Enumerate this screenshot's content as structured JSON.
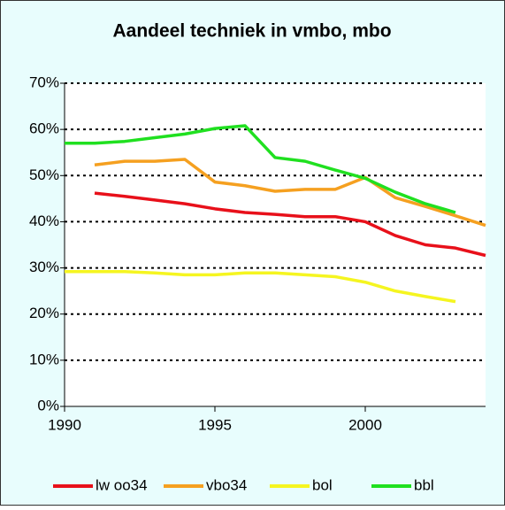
{
  "chart_data": {
    "type": "line",
    "title": "Aandeel techniek in vmbo, mbo",
    "x": [
      1990,
      1991,
      1992,
      1993,
      1994,
      1995,
      1996,
      1997,
      1998,
      1999,
      2000,
      2001,
      2002,
      2003,
      2004
    ],
    "xlim": [
      1990,
      2004
    ],
    "xticks": [
      1990,
      1995,
      2000
    ],
    "ylim": [
      0,
      70
    ],
    "yticks": [
      {
        "value": 0,
        "label": "0%"
      },
      {
        "value": 10,
        "label": "10%"
      },
      {
        "value": 20,
        "label": "20%"
      },
      {
        "value": 30,
        "label": "30%"
      },
      {
        "value": 40,
        "label": "40%"
      },
      {
        "value": 50,
        "label": "50%"
      },
      {
        "value": 60,
        "label": "60%"
      },
      {
        "value": 70,
        "label": "70%"
      }
    ],
    "grid": true,
    "legend": "bottom",
    "series": [
      {
        "name": "lw oo34",
        "color": "#e8101a",
        "values": [
          null,
          46.2,
          45.5,
          44.7,
          43.9,
          42.8,
          42.0,
          41.6,
          41.1,
          41.1,
          40.0,
          37.0,
          35.0,
          34.3,
          32.7
        ]
      },
      {
        "name": "vbo34",
        "color": "#f5a020",
        "values": [
          null,
          52.3,
          53.1,
          53.1,
          53.5,
          48.6,
          47.8,
          46.6,
          47.0,
          47.0,
          49.6,
          45.2,
          43.3,
          41.3,
          39.2
        ]
      },
      {
        "name": "bol",
        "color": "#f5f520",
        "values": [
          29.2,
          29.2,
          29.2,
          28.9,
          28.5,
          28.5,
          28.9,
          28.9,
          28.5,
          28.1,
          26.9,
          25.0,
          23.8,
          22.7,
          null
        ]
      },
      {
        "name": "bbl",
        "color": "#20e020",
        "values": [
          57.0,
          57.0,
          57.4,
          58.2,
          59.0,
          60.2,
          60.8,
          53.9,
          53.1,
          51.2,
          49.4,
          46.4,
          43.9,
          42.0,
          null
        ]
      }
    ]
  }
}
